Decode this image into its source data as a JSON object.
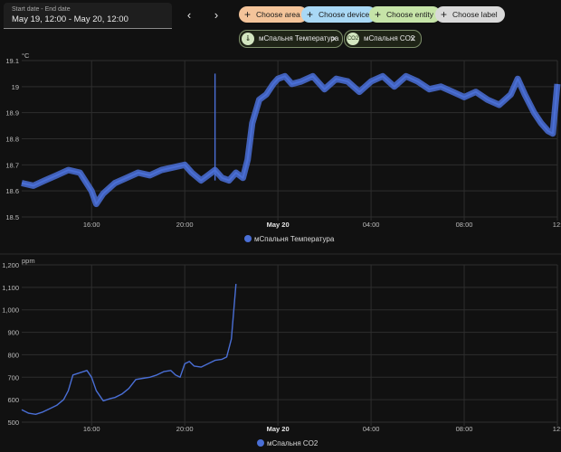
{
  "date_picker": {
    "label": "Start date - End date",
    "value": "May 19, 12:00 - May 20, 12:00"
  },
  "nav": {
    "prev_icon": "chevron-left-icon",
    "next_icon": "chevron-right-icon"
  },
  "filters": [
    {
      "label": "Choose area",
      "color": "#f4c49a"
    },
    {
      "label": "Choose device",
      "color": "#a9d8f5"
    },
    {
      "label": "Choose entity",
      "color": "#c6e4a8"
    },
    {
      "label": "Choose label",
      "color": "#d9d9d9"
    }
  ],
  "entities": [
    {
      "label": "мСпальня Температура",
      "icon": "thermometer-icon"
    },
    {
      "label": "мСпальня CO2",
      "icon": "molecule-co2-icon",
      "icon_text": "CO2"
    }
  ],
  "chart_data": [
    {
      "type": "line",
      "ylabel": "°C",
      "ylim": [
        18.5,
        19.1
      ],
      "yticks": [
        "18.5",
        "18.6",
        "18.7",
        "18.8",
        "18.9",
        "19",
        "19.1"
      ],
      "xticks": [
        "16:00",
        "20:00",
        "May 20",
        "04:00",
        "08:00",
        "12:"
      ],
      "xlim_hours": [
        13,
        36
      ],
      "series": [
        {
          "name": "мСпальня Температура",
          "color": "#4a6fd6",
          "x": [
            13,
            13.5,
            14,
            14.5,
            15,
            15.5,
            16,
            16.2,
            16.5,
            17,
            17.5,
            18,
            18.5,
            19,
            19.5,
            20,
            20.3,
            20.7,
            21,
            21.3,
            21.6,
            21.9,
            22.2,
            22.5,
            22.7,
            22.9,
            23.2,
            23.5,
            23.8,
            24,
            24.3,
            24.6,
            25,
            25.5,
            26,
            26.5,
            27,
            27.5,
            28,
            28.5,
            29,
            29.5,
            30,
            30.5,
            31,
            31.5,
            32,
            32.5,
            33,
            33.5,
            34,
            34.3,
            34.6,
            35,
            35.3,
            35.6,
            35.8,
            36
          ],
          "y": [
            18.63,
            18.62,
            18.64,
            18.66,
            18.68,
            18.67,
            18.6,
            18.55,
            18.59,
            18.63,
            18.65,
            18.67,
            18.66,
            18.68,
            18.69,
            18.7,
            18.67,
            18.64,
            18.66,
            18.68,
            18.65,
            18.64,
            18.67,
            18.65,
            18.72,
            18.86,
            18.95,
            18.97,
            19.01,
            19.03,
            19.04,
            19.01,
            19.02,
            19.04,
            18.99,
            19.03,
            19.02,
            18.98,
            19.02,
            19.04,
            19.0,
            19.04,
            19.02,
            18.99,
            19.0,
            18.98,
            18.96,
            18.98,
            18.95,
            18.93,
            18.97,
            19.03,
            18.97,
            18.9,
            18.86,
            18.83,
            18.82,
            19.01
          ]
        }
      ]
    },
    {
      "type": "line",
      "ylabel": "ppm",
      "ylim": [
        500,
        1200
      ],
      "yticks": [
        "500",
        "600",
        "700",
        "800",
        "900",
        "1,000",
        "1,100",
        "1,200"
      ],
      "xticks": [
        "16:00",
        "20:00",
        "May 20",
        "04:00",
        "08:00",
        "12:"
      ],
      "xlim_hours": [
        13,
        36
      ],
      "series": [
        {
          "name": "мСпальня CO2",
          "color": "#4a6fd6",
          "x": [
            13,
            13.3,
            13.6,
            13.9,
            14.2,
            14.5,
            14.8,
            15,
            15.2,
            15.5,
            15.8,
            16,
            16.2,
            16.5,
            16.8,
            17,
            17.3,
            17.6,
            17.9,
            18.2,
            18.5,
            18.8,
            19.1,
            19.4,
            19.6,
            19.8,
            20,
            20.2,
            20.4,
            20.7,
            21,
            21.3,
            21.6,
            21.8,
            22,
            22.2
          ],
          "y": [
            555,
            540,
            535,
            545,
            560,
            575,
            600,
            640,
            710,
            720,
            730,
            700,
            640,
            595,
            605,
            610,
            625,
            650,
            690,
            695,
            700,
            710,
            725,
            730,
            710,
            700,
            760,
            770,
            750,
            745,
            760,
            775,
            780,
            790,
            870,
            1115
          ]
        }
      ]
    }
  ],
  "legends": [
    "мСпальня Температура",
    "мСпальня CO2"
  ]
}
